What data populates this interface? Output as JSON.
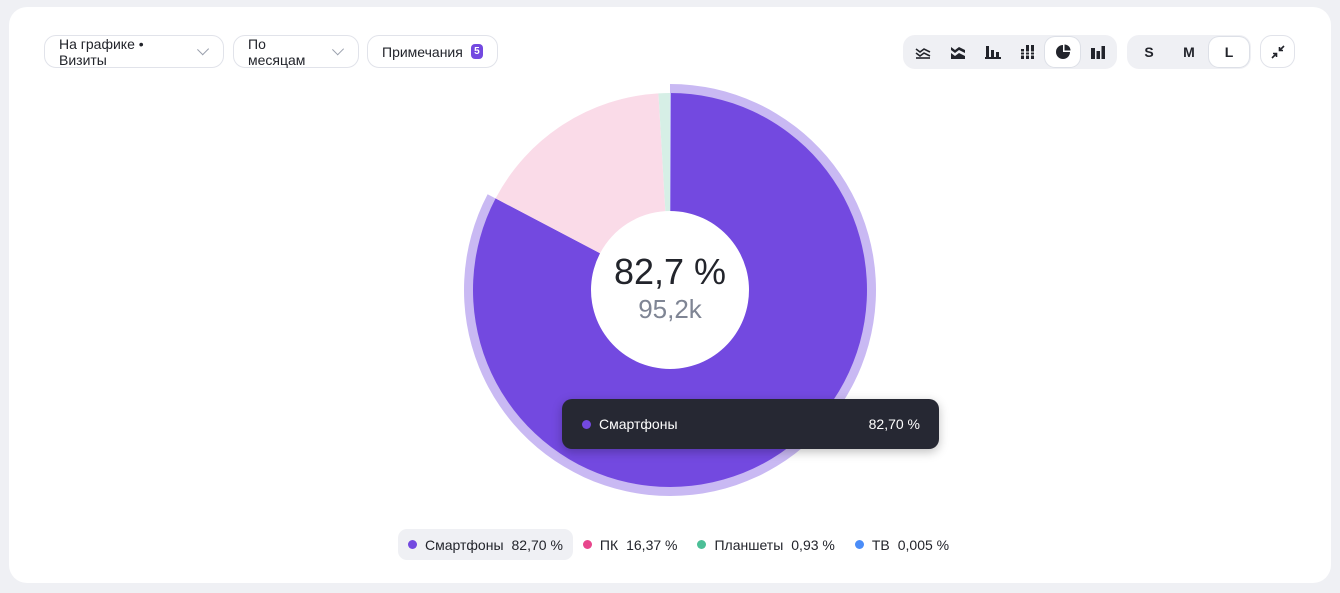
{
  "toolbar": {
    "metric_select": "На графике • Визиты",
    "period_select": "По месяцам",
    "notes_label": "Примечания",
    "notes_count": "5",
    "chart_types": [
      "line-chart-icon",
      "stacked-area-icon",
      "bar-chart-icon",
      "stacked-bar-icon",
      "pie-chart-icon",
      "column-chart-icon"
    ],
    "active_chart_type": "pie-chart-icon",
    "sizes": [
      "S",
      "M",
      "L"
    ],
    "active_size": "L"
  },
  "chart_data": {
    "type": "pie",
    "center_percent": "82,7 %",
    "center_value": "95,2k",
    "slices": [
      {
        "name": "Смартфоны",
        "value": 82.7,
        "label": "82,70 %",
        "color": "#7349e0",
        "fill": "#7349e0",
        "selected": true
      },
      {
        "name": "ПК",
        "value": 16.37,
        "label": "16,37 %",
        "color": "#e8468c",
        "fill": "#fadbe8"
      },
      {
        "name": "Планшеты",
        "value": 0.93,
        "label": "0,93 %",
        "color": "#4cbf97",
        "fill": "#d6efe6"
      },
      {
        "name": "ТВ",
        "value": 0.005,
        "label": "0,005 %",
        "color": "#4b8df8",
        "fill": "#d7e6fd"
      }
    ]
  },
  "tooltip": {
    "name": "Смартфоны",
    "value": "82,70 %",
    "color": "#7349e0"
  }
}
